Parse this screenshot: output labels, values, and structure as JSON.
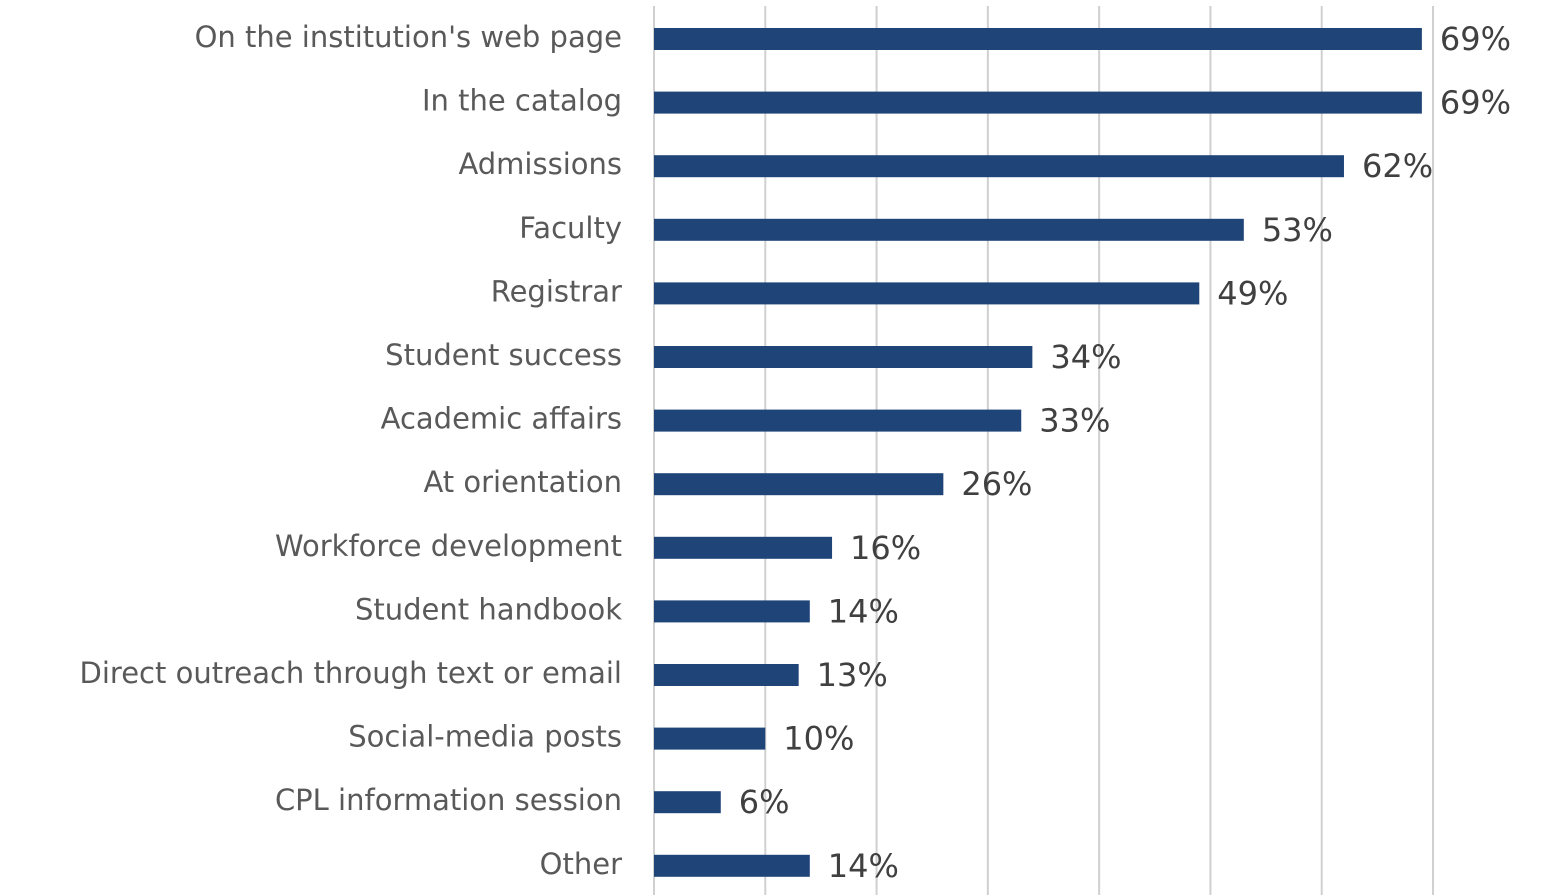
{
  "chart_data": {
    "type": "bar",
    "orientation": "horizontal",
    "categories": [
      "On the institution's web page",
      "In the catalog",
      "Admissions",
      "Faculty",
      "Registrar",
      "Student success",
      "Academic affairs",
      "At orientation",
      "Workforce development",
      "Student handbook",
      "Direct outreach through text or email",
      "Social-media posts",
      "CPL information session",
      "Other"
    ],
    "values": [
      69,
      69,
      62,
      53,
      49,
      34,
      33,
      26,
      16,
      14,
      13,
      10,
      6,
      14
    ],
    "value_labels": [
      "69%",
      "69%",
      "62%",
      "53%",
      "49%",
      "34%",
      "33%",
      "26%",
      "16%",
      "14%",
      "13%",
      "10%",
      "6%",
      "14%"
    ],
    "color": "#1f4477",
    "xlim": [
      0,
      70
    ],
    "xticks": [
      0,
      10,
      20,
      30,
      40,
      50,
      60,
      70
    ],
    "grid": true
  }
}
